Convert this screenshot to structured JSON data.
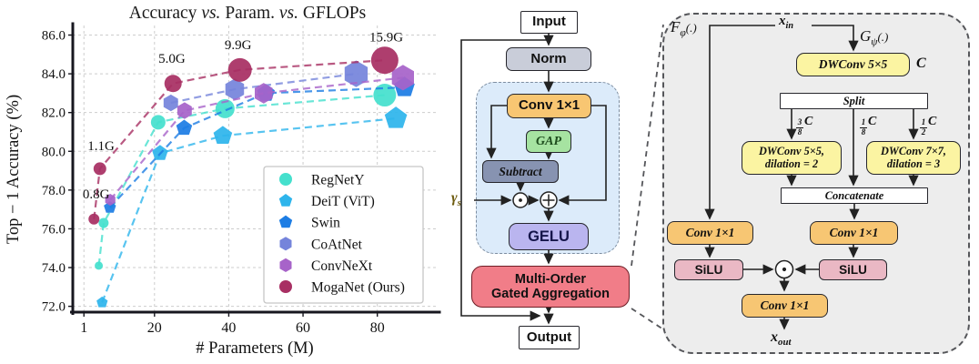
{
  "colors": {
    "norm_fill": "#c9cdd9",
    "conv_fill": "#f8c672",
    "gap_fill": "#a6e3a1",
    "subtract_fill": "#8793b1",
    "gelu_fill": "#bab5ef",
    "moga_fill": "#f17d88",
    "region_fill": "#dcebfa",
    "yellow_fill": "#fbf4a2",
    "orange_fill": "#f7c673",
    "silu_fill": "#eab8c4",
    "panel_fill": "#ededed",
    "io_fill": "#ffffff"
  },
  "icons": {
    "elementwise_multiply": "circled-dot-operator",
    "elementwise_add": "circled-plus-operator"
  },
  "chart_data": {
    "type": "scatter",
    "title": "Accuracy vs. Param. vs. GFLOPs",
    "title_runs": [
      {
        "text": "Accuracy ",
        "italic": false
      },
      {
        "text": "vs.",
        "italic": true
      },
      {
        "text": " Param. ",
        "italic": false
      },
      {
        "text": "vs.",
        "italic": true
      },
      {
        "text": " GFLOPs",
        "italic": false
      }
    ],
    "xlabel": "# Parameters (M)",
    "ylabel": "Top − 1 Accuracy (%)",
    "xlim": [
      -2,
      96
    ],
    "ylim": [
      71.7,
      86.4
    ],
    "xticks": [
      1,
      20,
      40,
      60,
      80
    ],
    "yticks": [
      72,
      74,
      76,
      78,
      80,
      82,
      84,
      86
    ],
    "grid": true,
    "legend_position": "lower right",
    "series": [
      {
        "name": "RegNetY",
        "color": "#45e0cd",
        "marker": "circle",
        "x": [
          5,
          6.3,
          21,
          39,
          82
        ],
        "y": [
          74.1,
          76.3,
          81.5,
          82.2,
          82.9
        ],
        "sizes": [
          4.5,
          5.5,
          8,
          10.5,
          12.5
        ]
      },
      {
        "name": "DeiT (ViT)",
        "color": "#2eb5ec",
        "marker": "pentagon",
        "x": [
          5.9,
          21.5,
          38.4,
          85
        ],
        "y": [
          72.2,
          79.9,
          80.8,
          81.7
        ],
        "sizes": [
          6,
          8.5,
          10,
          12
        ]
      },
      {
        "name": "Swin",
        "color": "#1d7de4",
        "marker": "pentagon",
        "x": [
          8,
          28,
          50,
          87.3
        ],
        "y": [
          77.1,
          81.2,
          83.0,
          83.3
        ],
        "sizes": [
          6.5,
          8.5,
          9.5,
          11
        ]
      },
      {
        "name": "CoAtNet",
        "color": "#7584db",
        "marker": "hexagon",
        "x": [
          24.4,
          41.6,
          74.3
        ],
        "y": [
          82.5,
          83.2,
          84.0
        ],
        "sizes": [
          8.5,
          11,
          13.5
        ]
      },
      {
        "name": "ConvNeXt",
        "color": "#a763c9",
        "marker": "hexagon",
        "x": [
          8.1,
          28.1,
          49.4,
          86.9
        ],
        "y": [
          77.5,
          82.1,
          83.0,
          83.8
        ],
        "sizes": [
          6,
          8.5,
          10.5,
          13
        ]
      },
      {
        "name": "MogaNet (Ours)",
        "color": "#a82f63",
        "marker": "circle",
        "x": [
          3.7,
          5.3,
          25,
          43,
          82
        ],
        "y": [
          76.5,
          79.1,
          83.5,
          84.2,
          84.7
        ],
        "sizes": [
          6,
          7,
          9.5,
          13,
          15
        ]
      }
    ],
    "annotations": [
      {
        "text": "0.8G",
        "x": 4.3,
        "y": 77.8
      },
      {
        "text": "1.1G",
        "x": 5.6,
        "y": 80.3
      },
      {
        "text": "5.0G",
        "x": 24.7,
        "y": 84.8
      },
      {
        "text": "9.9G",
        "x": 42.5,
        "y": 85.5
      },
      {
        "text": "15.9G",
        "x": 82.4,
        "y": 85.9
      }
    ]
  },
  "block_diagram": {
    "input": "Input",
    "norm": "Norm",
    "conv1x1": "Conv 1×1",
    "gap": "GAP",
    "subtract": "Subtract",
    "gamma": "γ",
    "gamma_sub": "s",
    "gelu": "GELU",
    "moga_line1": "Multi-Order",
    "moga_line2": "Gated Aggregation",
    "output": "Output"
  },
  "moga_module": {
    "f_main": "F",
    "f_sub": "φ",
    "f_paren": "(.)",
    "x_in_main": "x",
    "x_in_sub": "in",
    "g_main": "G",
    "g_sub": "ψ",
    "g_paren": "(.)",
    "dwconv5": "DWConv 5×5",
    "channels": "C",
    "split": "Split",
    "branch1_num": "3",
    "branch1_den": "8",
    "branch1_c": "C",
    "branch2_num": "1",
    "branch2_den": "8",
    "branch2_c": "C",
    "branch3_num": "1",
    "branch3_den": "2",
    "branch3_c": "C",
    "dw5_line1": "DWConv 5×5,",
    "dw5_line2": "dilation = 2",
    "dw7_line1": "DWConv 7×7,",
    "dw7_line2": "dilation = 3",
    "concatenate": "Concatenate",
    "conv_left": "Conv 1×1",
    "conv_right": "Conv 1×1",
    "conv_out": "Conv 1×1",
    "silu_left": "SiLU",
    "silu_right": "SiLU",
    "x_out_main": "x",
    "x_out_sub": "out"
  }
}
